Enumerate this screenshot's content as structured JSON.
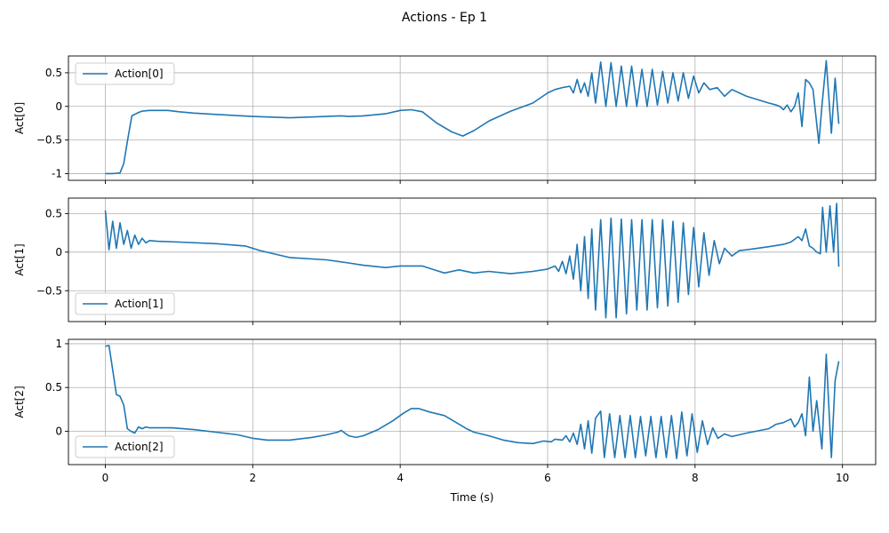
{
  "figure": {
    "title": "Actions - Ep 1",
    "xlabel": "Time (s)",
    "x_ticks": [
      0,
      2,
      4,
      6,
      8,
      10
    ]
  },
  "chart_data": [
    {
      "type": "line",
      "ylabel": "Act[0]",
      "xlim": [
        -0.5,
        10.45
      ],
      "ylim": [
        -1.1,
        0.75
      ],
      "y_ticks": [
        -1.0,
        -0.5,
        0.0,
        0.5
      ],
      "grid": true,
      "legend_placement": "upper left",
      "color": "#1f77b4",
      "series": [
        {
          "name": "Action[0]",
          "points": [
            [
              0.0,
              -1.0
            ],
            [
              0.1,
              -1.0
            ],
            [
              0.2,
              -0.99
            ],
            [
              0.25,
              -0.85
            ],
            [
              0.3,
              -0.52
            ],
            [
              0.36,
              -0.14
            ],
            [
              0.45,
              -0.09
            ],
            [
              0.5,
              -0.07
            ],
            [
              0.6,
              -0.06
            ],
            [
              0.7,
              -0.06
            ],
            [
              0.85,
              -0.06
            ],
            [
              1.0,
              -0.08
            ],
            [
              1.2,
              -0.1
            ],
            [
              1.5,
              -0.12
            ],
            [
              2.0,
              -0.15
            ],
            [
              2.5,
              -0.17
            ],
            [
              3.0,
              -0.15
            ],
            [
              3.2,
              -0.14
            ],
            [
              3.3,
              -0.15
            ],
            [
              3.5,
              -0.14
            ],
            [
              3.8,
              -0.11
            ],
            [
              4.0,
              -0.06
            ],
            [
              4.15,
              -0.05
            ],
            [
              4.3,
              -0.08
            ],
            [
              4.5,
              -0.25
            ],
            [
              4.7,
              -0.38
            ],
            [
              4.85,
              -0.44
            ],
            [
              5.0,
              -0.36
            ],
            [
              5.2,
              -0.22
            ],
            [
              5.5,
              -0.07
            ],
            [
              5.8,
              0.05
            ],
            [
              6.0,
              0.2
            ],
            [
              6.1,
              0.25
            ],
            [
              6.2,
              0.28
            ],
            [
              6.3,
              0.3
            ],
            [
              6.35,
              0.2
            ],
            [
              6.4,
              0.4
            ],
            [
              6.45,
              0.2
            ],
            [
              6.5,
              0.35
            ],
            [
              6.55,
              0.15
            ],
            [
              6.6,
              0.5
            ],
            [
              6.65,
              0.05
            ],
            [
              6.72,
              0.66
            ],
            [
              6.79,
              0.0
            ],
            [
              6.86,
              0.65
            ],
            [
              6.93,
              0.0
            ],
            [
              7.0,
              0.6
            ],
            [
              7.07,
              0.0
            ],
            [
              7.14,
              0.6
            ],
            [
              7.21,
              0.0
            ],
            [
              7.28,
              0.55
            ],
            [
              7.35,
              0.0
            ],
            [
              7.42,
              0.55
            ],
            [
              7.49,
              0.02
            ],
            [
              7.56,
              0.52
            ],
            [
              7.63,
              0.05
            ],
            [
              7.7,
              0.5
            ],
            [
              7.77,
              0.08
            ],
            [
              7.84,
              0.5
            ],
            [
              7.91,
              0.12
            ],
            [
              7.98,
              0.45
            ],
            [
              8.05,
              0.2
            ],
            [
              8.12,
              0.35
            ],
            [
              8.2,
              0.25
            ],
            [
              8.3,
              0.28
            ],
            [
              8.4,
              0.15
            ],
            [
              8.5,
              0.25
            ],
            [
              8.7,
              0.15
            ],
            [
              9.0,
              0.05
            ],
            [
              9.1,
              0.02
            ],
            [
              9.15,
              0.0
            ],
            [
              9.2,
              -0.05
            ],
            [
              9.25,
              0.02
            ],
            [
              9.3,
              -0.08
            ],
            [
              9.35,
              0.0
            ],
            [
              9.4,
              0.2
            ],
            [
              9.45,
              -0.3
            ],
            [
              9.5,
              0.4
            ],
            [
              9.55,
              0.35
            ],
            [
              9.6,
              0.25
            ],
            [
              9.68,
              -0.55
            ],
            [
              9.72,
              0.0
            ],
            [
              9.78,
              0.68
            ],
            [
              9.85,
              -0.4
            ],
            [
              9.9,
              0.42
            ],
            [
              9.95,
              -0.26
            ]
          ]
        }
      ]
    },
    {
      "type": "line",
      "ylabel": "Act[1]",
      "xlim": [
        -0.5,
        10.45
      ],
      "ylim": [
        -0.9,
        0.7
      ],
      "y_ticks": [
        -0.5,
        0.0,
        0.5
      ],
      "grid": true,
      "legend_placement": "lower left",
      "color": "#1f77b4",
      "series": [
        {
          "name": "Action[1]",
          "points": [
            [
              0.0,
              0.54
            ],
            [
              0.05,
              0.03
            ],
            [
              0.1,
              0.4
            ],
            [
              0.15,
              0.05
            ],
            [
              0.2,
              0.38
            ],
            [
              0.25,
              0.1
            ],
            [
              0.3,
              0.28
            ],
            [
              0.35,
              0.05
            ],
            [
              0.4,
              0.22
            ],
            [
              0.45,
              0.1
            ],
            [
              0.5,
              0.18
            ],
            [
              0.55,
              0.12
            ],
            [
              0.6,
              0.15
            ],
            [
              0.7,
              0.14
            ],
            [
              1.0,
              0.13
            ],
            [
              1.5,
              0.11
            ],
            [
              1.9,
              0.08
            ],
            [
              2.1,
              0.02
            ],
            [
              2.5,
              -0.07
            ],
            [
              3.0,
              -0.1
            ],
            [
              3.3,
              -0.14
            ],
            [
              3.5,
              -0.17
            ],
            [
              3.8,
              -0.2
            ],
            [
              4.0,
              -0.18
            ],
            [
              4.3,
              -0.18
            ],
            [
              4.5,
              -0.24
            ],
            [
              4.6,
              -0.27
            ],
            [
              4.8,
              -0.23
            ],
            [
              5.0,
              -0.27
            ],
            [
              5.2,
              -0.25
            ],
            [
              5.5,
              -0.28
            ],
            [
              5.8,
              -0.25
            ],
            [
              6.0,
              -0.22
            ],
            [
              6.1,
              -0.18
            ],
            [
              6.15,
              -0.25
            ],
            [
              6.2,
              -0.12
            ],
            [
              6.25,
              -0.28
            ],
            [
              6.3,
              -0.05
            ],
            [
              6.35,
              -0.35
            ],
            [
              6.4,
              0.1
            ],
            [
              6.45,
              -0.5
            ],
            [
              6.5,
              0.2
            ],
            [
              6.55,
              -0.6
            ],
            [
              6.6,
              0.3
            ],
            [
              6.65,
              -0.75
            ],
            [
              6.72,
              0.42
            ],
            [
              6.79,
              -0.85
            ],
            [
              6.86,
              0.44
            ],
            [
              6.93,
              -0.85
            ],
            [
              7.0,
              0.43
            ],
            [
              7.07,
              -0.8
            ],
            [
              7.14,
              0.42
            ],
            [
              7.21,
              -0.75
            ],
            [
              7.28,
              0.42
            ],
            [
              7.35,
              -0.75
            ],
            [
              7.42,
              0.42
            ],
            [
              7.49,
              -0.72
            ],
            [
              7.56,
              0.42
            ],
            [
              7.63,
              -0.7
            ],
            [
              7.7,
              0.4
            ],
            [
              7.77,
              -0.65
            ],
            [
              7.84,
              0.38
            ],
            [
              7.91,
              -0.55
            ],
            [
              7.98,
              0.32
            ],
            [
              8.05,
              -0.45
            ],
            [
              8.12,
              0.25
            ],
            [
              8.19,
              -0.3
            ],
            [
              8.26,
              0.15
            ],
            [
              8.33,
              -0.15
            ],
            [
              8.4,
              0.05
            ],
            [
              8.5,
              -0.05
            ],
            [
              8.6,
              0.02
            ],
            [
              8.7,
              0.03
            ],
            [
              9.0,
              0.07
            ],
            [
              9.2,
              0.1
            ],
            [
              9.3,
              0.13
            ],
            [
              9.4,
              0.2
            ],
            [
              9.45,
              0.15
            ],
            [
              9.5,
              0.3
            ],
            [
              9.55,
              0.08
            ],
            [
              9.6,
              0.05
            ],
            [
              9.65,
              0.0
            ],
            [
              9.7,
              -0.02
            ],
            [
              9.73,
              0.58
            ],
            [
              9.78,
              0.0
            ],
            [
              9.83,
              0.6
            ],
            [
              9.88,
              0.0
            ],
            [
              9.92,
              0.63
            ],
            [
              9.95,
              -0.19
            ]
          ]
        }
      ]
    },
    {
      "type": "line",
      "ylabel": "Act[2]",
      "xlim": [
        -0.5,
        10.45
      ],
      "ylim": [
        -0.38,
        1.05
      ],
      "y_ticks": [
        0.0,
        0.5,
        1.0
      ],
      "grid": true,
      "legend_placement": "lower left",
      "color": "#1f77b4",
      "series": [
        {
          "name": "Action[2]",
          "points": [
            [
              0.0,
              0.97
            ],
            [
              0.05,
              0.98
            ],
            [
              0.1,
              0.7
            ],
            [
              0.15,
              0.42
            ],
            [
              0.2,
              0.4
            ],
            [
              0.25,
              0.3
            ],
            [
              0.3,
              0.03
            ],
            [
              0.35,
              0.0
            ],
            [
              0.4,
              -0.02
            ],
            [
              0.45,
              0.05
            ],
            [
              0.5,
              0.03
            ],
            [
              0.55,
              0.05
            ],
            [
              0.6,
              0.04
            ],
            [
              0.7,
              0.04
            ],
            [
              0.9,
              0.04
            ],
            [
              1.2,
              0.02
            ],
            [
              1.5,
              -0.01
            ],
            [
              1.8,
              -0.04
            ],
            [
              2.0,
              -0.08
            ],
            [
              2.2,
              -0.1
            ],
            [
              2.5,
              -0.1
            ],
            [
              2.8,
              -0.07
            ],
            [
              3.0,
              -0.04
            ],
            [
              3.15,
              -0.01
            ],
            [
              3.2,
              0.01
            ],
            [
              3.3,
              -0.05
            ],
            [
              3.4,
              -0.07
            ],
            [
              3.5,
              -0.05
            ],
            [
              3.7,
              0.02
            ],
            [
              3.9,
              0.12
            ],
            [
              4.05,
              0.21
            ],
            [
              4.15,
              0.26
            ],
            [
              4.25,
              0.26
            ],
            [
              4.4,
              0.22
            ],
            [
              4.6,
              0.18
            ],
            [
              4.7,
              0.13
            ],
            [
              4.9,
              0.03
            ],
            [
              5.0,
              -0.01
            ],
            [
              5.2,
              -0.05
            ],
            [
              5.4,
              -0.1
            ],
            [
              5.6,
              -0.13
            ],
            [
              5.8,
              -0.14
            ],
            [
              5.95,
              -0.11
            ],
            [
              6.05,
              -0.12
            ],
            [
              6.1,
              -0.09
            ],
            [
              6.2,
              -0.1
            ],
            [
              6.25,
              -0.05
            ],
            [
              6.3,
              -0.12
            ],
            [
              6.35,
              -0.02
            ],
            [
              6.4,
              -0.15
            ],
            [
              6.45,
              0.08
            ],
            [
              6.5,
              -0.2
            ],
            [
              6.55,
              0.12
            ],
            [
              6.6,
              -0.25
            ],
            [
              6.65,
              0.15
            ],
            [
              6.72,
              0.23
            ],
            [
              6.77,
              -0.3
            ],
            [
              6.84,
              0.2
            ],
            [
              6.91,
              -0.3
            ],
            [
              6.98,
              0.18
            ],
            [
              7.05,
              -0.3
            ],
            [
              7.12,
              0.18
            ],
            [
              7.19,
              -0.3
            ],
            [
              7.26,
              0.17
            ],
            [
              7.33,
              -0.28
            ],
            [
              7.4,
              0.17
            ],
            [
              7.47,
              -0.3
            ],
            [
              7.54,
              0.17
            ],
            [
              7.61,
              -0.3
            ],
            [
              7.68,
              0.18
            ],
            [
              7.75,
              -0.31
            ],
            [
              7.82,
              0.22
            ],
            [
              7.89,
              -0.28
            ],
            [
              7.96,
              0.2
            ],
            [
              8.03,
              -0.24
            ],
            [
              8.1,
              0.12
            ],
            [
              8.17,
              -0.15
            ],
            [
              8.24,
              0.04
            ],
            [
              8.31,
              -0.08
            ],
            [
              8.4,
              -0.03
            ],
            [
              8.5,
              -0.06
            ],
            [
              8.7,
              -0.02
            ],
            [
              9.0,
              0.03
            ],
            [
              9.1,
              0.08
            ],
            [
              9.2,
              0.1
            ],
            [
              9.3,
              0.14
            ],
            [
              9.35,
              0.05
            ],
            [
              9.4,
              0.1
            ],
            [
              9.45,
              0.2
            ],
            [
              9.5,
              -0.05
            ],
            [
              9.55,
              0.62
            ],
            [
              9.6,
              0.0
            ],
            [
              9.65,
              0.35
            ],
            [
              9.72,
              -0.2
            ],
            [
              9.78,
              0.88
            ],
            [
              9.85,
              -0.3
            ],
            [
              9.9,
              0.58
            ],
            [
              9.95,
              0.8
            ]
          ]
        }
      ]
    }
  ]
}
